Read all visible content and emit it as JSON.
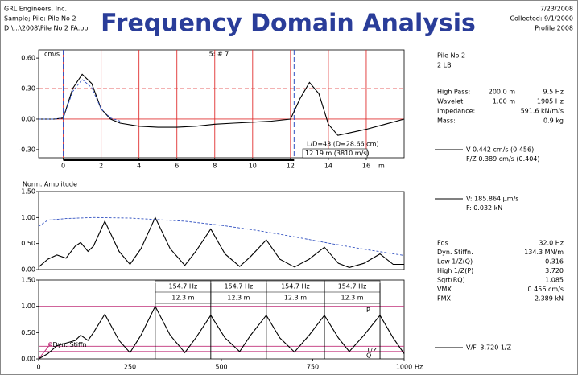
{
  "header": {
    "left": [
      "GRL Engineers, Inc.",
      "Sample; Pile: Pile No 2",
      "D:\\...\\2008\\Pile No 2 FA.pp"
    ],
    "title": "Frequency Domain Analysis",
    "right": [
      "7/23/2008",
      "Collected: 9/1/2000",
      "Profile 2008"
    ]
  },
  "panel": {
    "pile": "Pile No 2",
    "gauge": "2 LB",
    "params": [
      [
        "High Pass:",
        "200.0 m",
        "9.5 Hz"
      ],
      [
        "Wavelet",
        "1.00 m",
        "1905 Hz"
      ],
      [
        "Impedance:",
        "591.6 kN/m/s"
      ],
      [
        "Mass:",
        "0.9 kg"
      ]
    ],
    "results": [
      [
        "Fds",
        "32.0 Hz"
      ],
      [
        "Dyn. Stiffn.",
        "134.3 MN/m"
      ],
      [
        "Low 1/Z(Q)",
        "0.316"
      ],
      [
        "High 1/Z(P)",
        "3.720"
      ],
      [
        "Sqrt(RQ)",
        "1.085"
      ],
      [
        "VMX",
        "0.456 cm/s"
      ],
      [
        "FMX",
        "2.389 kN"
      ]
    ]
  },
  "chart_data": [
    {
      "type": "line",
      "y_label": "cm/s",
      "subtitle": "5: # 7",
      "x_label": "m",
      "xlim": [
        -1.3,
        18.0
      ],
      "ylim": [
        -0.38,
        0.68
      ],
      "yticks": [
        {
          "value": 0.6,
          "label": "0.60"
        },
        {
          "value": 0.3,
          "label": "0.30"
        },
        {
          "value": 0,
          "label": "0.00"
        },
        {
          "value": -0.3,
          "label": "-0.30"
        }
      ],
      "xticks": [
        0,
        2,
        4,
        6,
        8,
        10,
        12,
        14,
        16
      ],
      "grid": true,
      "grid_color": "#e03030",
      "hlines": [
        0.3,
        0
      ],
      "hline_color": "#e03030",
      "vlines": [
        0,
        12.19
      ],
      "vline_color": "#3050c0",
      "annotations": [
        "L/D=43 (D=28.66 cm)",
        "12.19 m (3810 m/s)"
      ],
      "series": [
        {
          "name": "V 0.442 cm/s (0.456)",
          "color": "#000000",
          "dashed": false,
          "x": [
            -1.3,
            -0.5,
            0,
            0.5,
            1,
            1.5,
            2,
            2.5,
            3,
            4,
            5,
            6,
            7,
            8,
            9,
            10,
            11,
            12,
            12.5,
            13,
            13.5,
            14,
            14.5,
            15,
            16,
            17,
            18
          ],
          "values": [
            0,
            0,
            0.01,
            0.3,
            0.44,
            0.35,
            0.1,
            0.0,
            -0.04,
            -0.07,
            -0.08,
            -0.08,
            -0.07,
            -0.05,
            -0.04,
            -0.03,
            -0.02,
            0.0,
            0.2,
            0.36,
            0.25,
            -0.05,
            -0.16,
            -0.14,
            -0.1,
            -0.05,
            0.0
          ]
        },
        {
          "name": "F/Z 0.389 cm/s (0.404)",
          "color": "#3050c0",
          "dashed": true,
          "x": [
            -1.3,
            -0.5,
            0,
            0.5,
            1,
            1.5,
            2,
            2.5,
            3
          ],
          "values": [
            0,
            0,
            0.01,
            0.27,
            0.39,
            0.31,
            0.1,
            0.01,
            -0.02
          ]
        }
      ]
    },
    {
      "type": "line",
      "y_label": "Norm. Amplitude",
      "xlim": [
        0,
        1000
      ],
      "ylim": [
        0,
        1.5
      ],
      "yticks": [
        {
          "value": 1.5,
          "label": "1.50"
        },
        {
          "value": 1,
          "label": "1.00"
        },
        {
          "value": 0.5,
          "label": "0.50"
        },
        {
          "value": 0,
          "label": "0.00"
        }
      ],
      "grid": false,
      "series": [
        {
          "name": "V: 185.864 µm/s",
          "color": "#000000",
          "dashed": false,
          "x": [
            0,
            25,
            50,
            75,
            100,
            115,
            135,
            150,
            181,
            220,
            250,
            280,
            319,
            360,
            400,
            430,
            471,
            510,
            550,
            580,
            623,
            660,
            700,
            740,
            782,
            820,
            850,
            890,
            934,
            970,
            1000
          ],
          "values": [
            0.05,
            0.2,
            0.28,
            0.22,
            0.45,
            0.52,
            0.35,
            0.45,
            0.93,
            0.35,
            0.1,
            0.4,
            1.0,
            0.4,
            0.08,
            0.35,
            0.78,
            0.3,
            0.06,
            0.25,
            0.57,
            0.2,
            0.05,
            0.2,
            0.43,
            0.12,
            0.04,
            0.12,
            0.3,
            0.1,
            0.1
          ]
        },
        {
          "name": "F: 0.032 kN",
          "color": "#3050c0",
          "dashed": true,
          "x": [
            0,
            25,
            75,
            150,
            250,
            400,
            500,
            600,
            700,
            800,
            900,
            1000
          ],
          "values": [
            0.83,
            0.95,
            0.98,
            1.0,
            0.99,
            0.93,
            0.85,
            0.75,
            0.63,
            0.5,
            0.38,
            0.27
          ]
        }
      ]
    },
    {
      "type": "line",
      "x_label": "Hz",
      "xlim": [
        0,
        1000
      ],
      "ylim": [
        0,
        1.5
      ],
      "yticks": [
        {
          "value": 1.5,
          "label": "1.50"
        },
        {
          "value": 1,
          "label": "1.00"
        },
        {
          "value": 0.5,
          "label": "0.50"
        },
        {
          "value": 0,
          "label": "0.00"
        }
      ],
      "xticks": [
        0,
        250,
        500,
        750,
        1000
      ],
      "grid": false,
      "hlines": [
        {
          "value": 1.0,
          "label": "P"
        },
        {
          "value": 0.24,
          "label": "1/Z"
        },
        {
          "value": 0.14,
          "label": "Q"
        }
      ],
      "hline_color": "#c0307a",
      "stiffness_line": {
        "label": "Dyn. Stiffn",
        "x": [
          0,
          32
        ],
        "values": [
          0,
          0.28
        ]
      },
      "vlines": [
        319,
        471,
        623,
        782,
        934
      ],
      "vline_color": "#000000",
      "spacing_labels": [
        [
          "154.7 Hz",
          "12.3 m"
        ],
        [
          "154.7 Hz",
          "12.3 m"
        ],
        [
          "154.7 Hz",
          "12.3 m"
        ],
        [
          "154.7 Hz",
          "12.3 m"
        ]
      ],
      "series": [
        {
          "name": "V/F: 3.720 1/Z",
          "color": "#000000",
          "dashed": false,
          "x": [
            0,
            25,
            50,
            75,
            100,
            115,
            135,
            150,
            181,
            220,
            250,
            280,
            319,
            360,
            400,
            430,
            471,
            510,
            550,
            580,
            623,
            660,
            700,
            740,
            782,
            820,
            850,
            890,
            934,
            970,
            1000
          ],
          "values": [
            0.0,
            0.1,
            0.25,
            0.3,
            0.35,
            0.45,
            0.35,
            0.5,
            0.85,
            0.35,
            0.12,
            0.45,
            1.0,
            0.45,
            0.12,
            0.4,
            0.83,
            0.4,
            0.14,
            0.45,
            0.83,
            0.4,
            0.13,
            0.45,
            0.83,
            0.4,
            0.14,
            0.45,
            0.83,
            0.4,
            0.1
          ]
        }
      ]
    }
  ]
}
